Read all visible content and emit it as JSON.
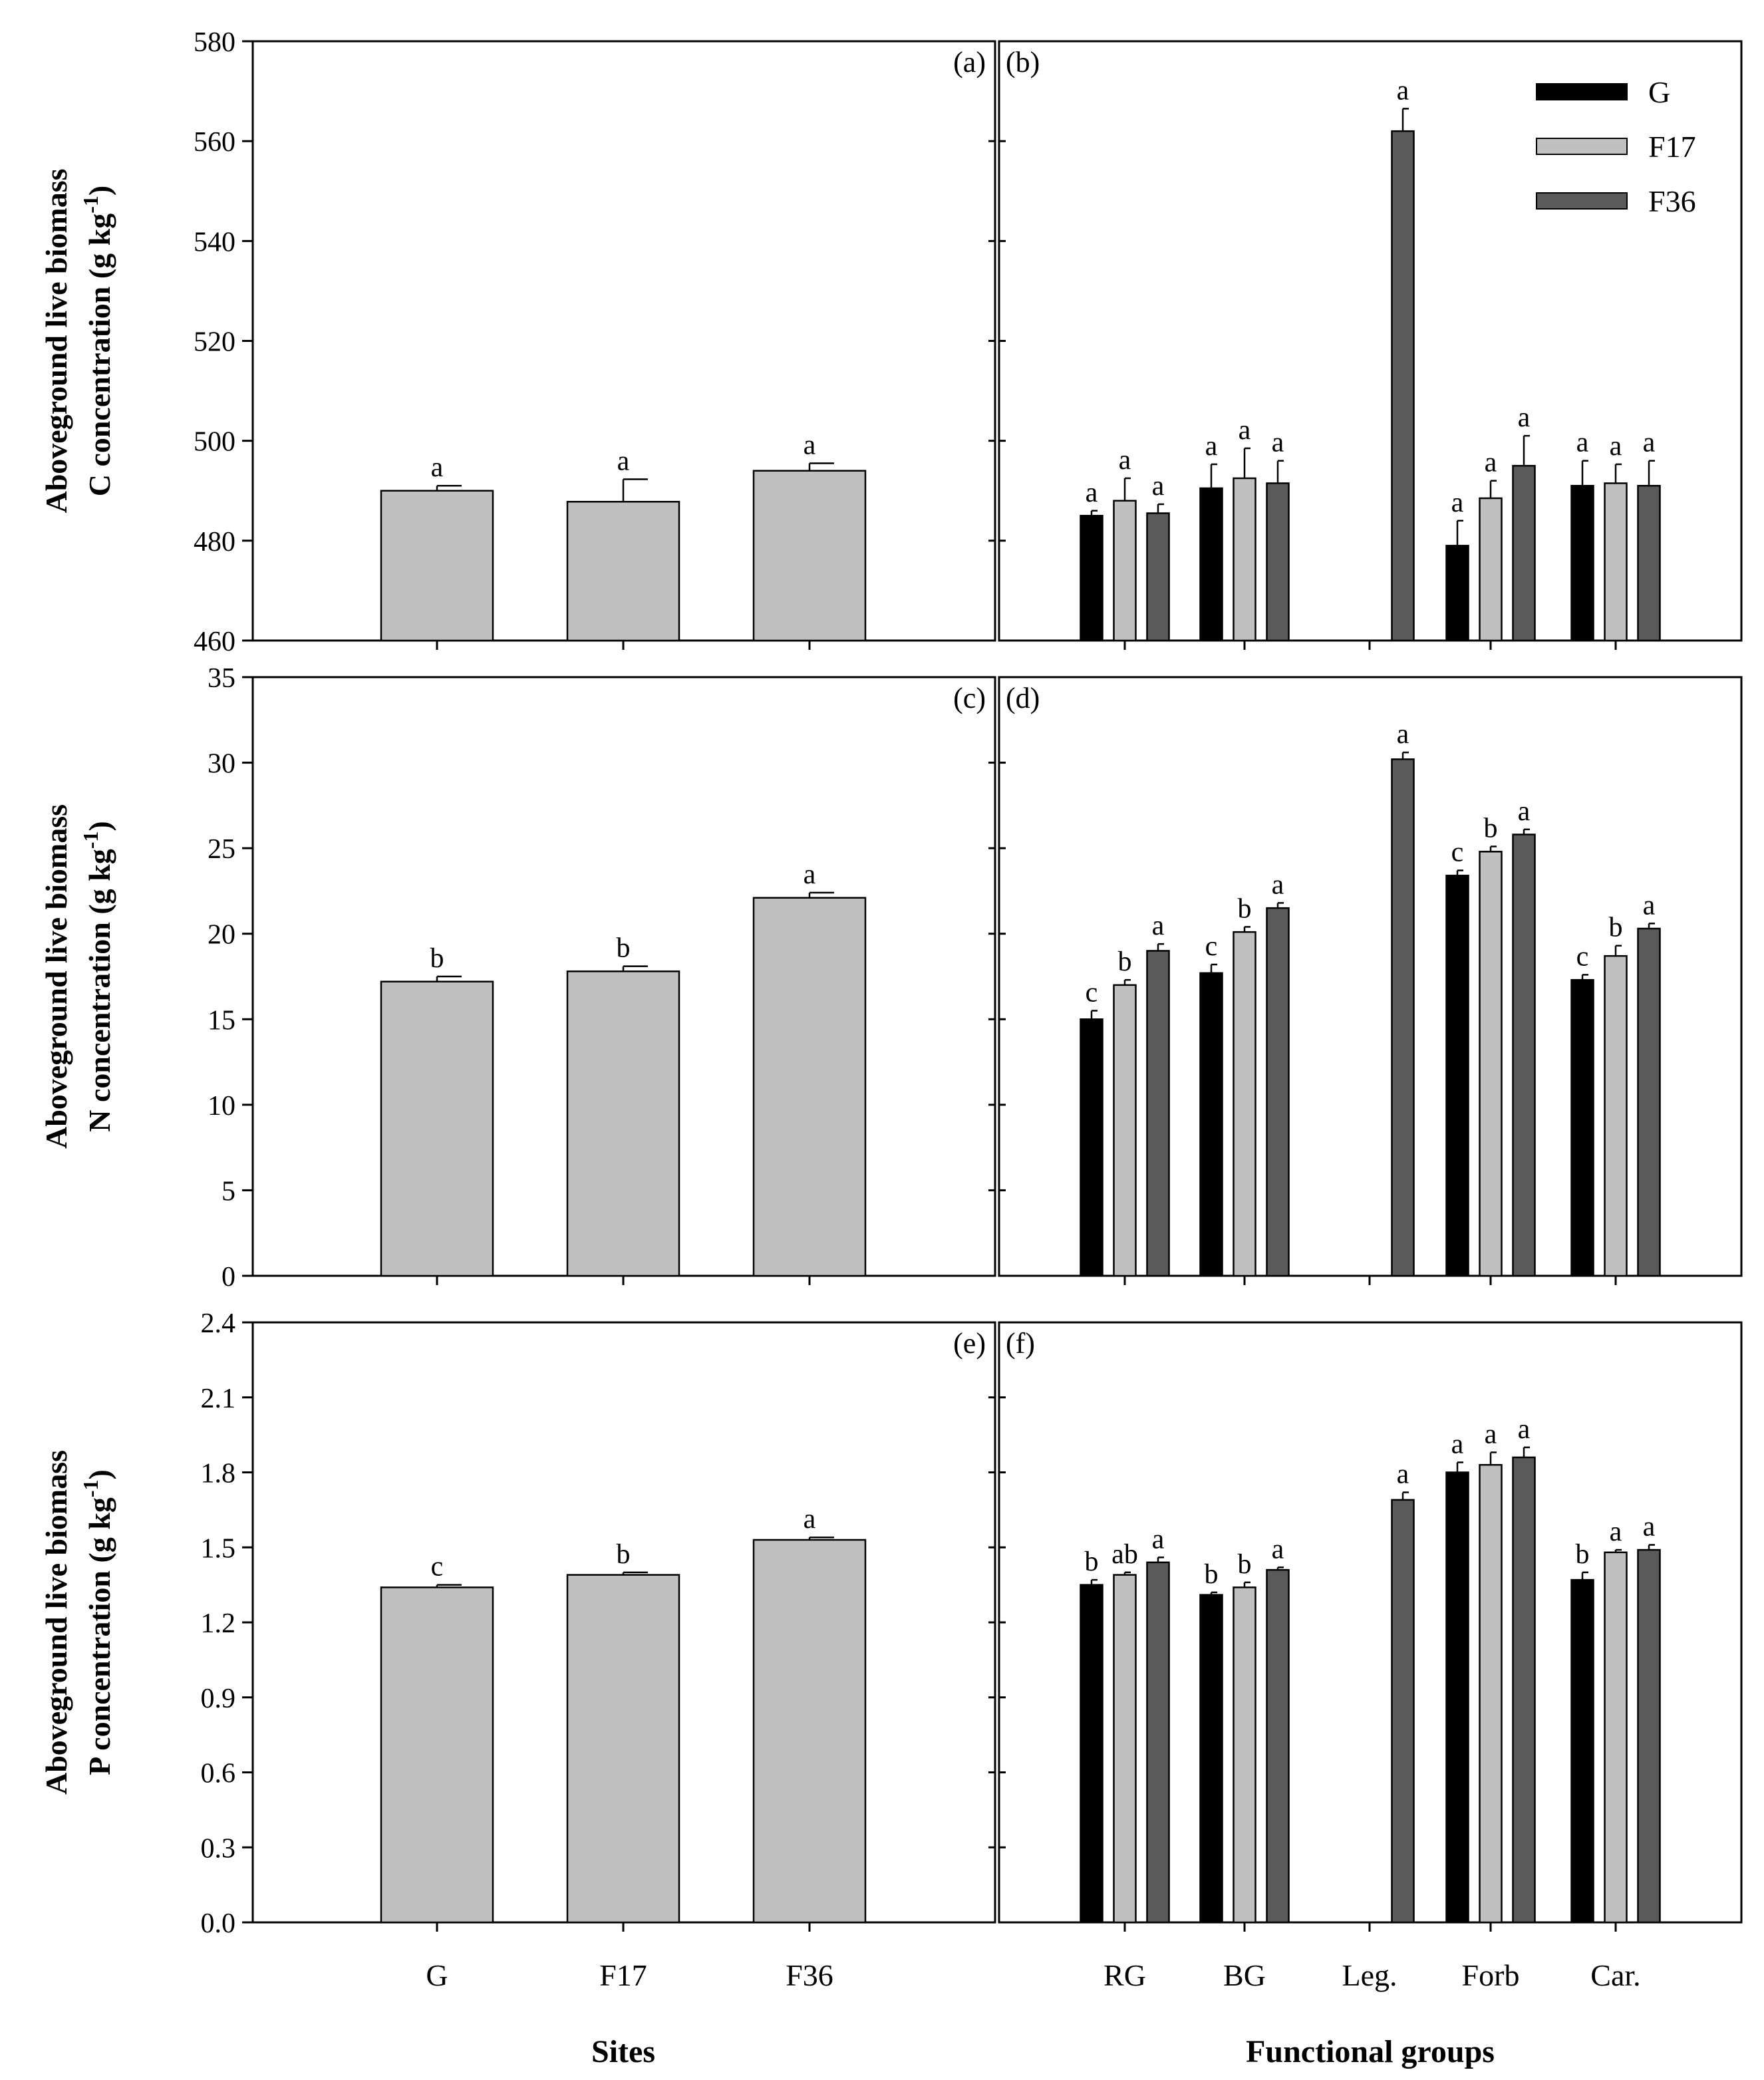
{
  "chart_data": {
    "type": "bar",
    "series_colors": {
      "G": "#000000",
      "F17": "#c0c0c0",
      "F36": "#5a5a5a"
    },
    "site_bar_color": "#c0c0c0",
    "legend": {
      "entries": [
        "G",
        "F17",
        "F36"
      ],
      "position": "top-right"
    },
    "xlabel_left": "Sites",
    "xlabel_right": "Functional groups",
    "site_categories": [
      "G",
      "F17",
      "F36"
    ],
    "group_categories": [
      "RG",
      "BG",
      "Leg.",
      "Forb",
      "Car."
    ],
    "rows": [
      {
        "ylabel_line1": "Aboveground live biomass",
        "ylabel_line2": "C concentration (g kg",
        "ylabel_sup": "-1",
        "ylabel_close": ")",
        "ylim": [
          460,
          580
        ],
        "yticks": [
          "460",
          "480",
          "500",
          "520",
          "540",
          "560",
          "580"
        ],
        "left": {
          "tag": "(a)",
          "bars": [
            {
              "category": "G",
              "value": 490.0,
              "error": 1.0,
              "sig": "a"
            },
            {
              "category": "F17",
              "value": 487.8,
              "error": 4.5,
              "sig": "a"
            },
            {
              "category": "F36",
              "value": 494.0,
              "error": 1.5,
              "sig": "a"
            }
          ]
        },
        "right": {
          "tag": "(b)",
          "groups": [
            {
              "category": "RG",
              "bars": [
                {
                  "series": "G",
                  "value": 485.0,
                  "error": 1.0,
                  "sig": "a"
                },
                {
                  "series": "F17",
                  "value": 488.0,
                  "error": 4.5,
                  "sig": "a"
                },
                {
                  "series": "F36",
                  "value": 485.5,
                  "error": 1.8,
                  "sig": "a"
                }
              ]
            },
            {
              "category": "BG",
              "bars": [
                {
                  "series": "G",
                  "value": 490.5,
                  "error": 4.8,
                  "sig": "a"
                },
                {
                  "series": "F17",
                  "value": 492.5,
                  "error": 6.0,
                  "sig": "a"
                },
                {
                  "series": "F36",
                  "value": 491.5,
                  "error": 4.5,
                  "sig": "a"
                }
              ]
            },
            {
              "category": "Leg.",
              "bars": [
                {
                  "series": "F36",
                  "value": 562.0,
                  "error": 4.5,
                  "sig": "a"
                }
              ]
            },
            {
              "category": "Forb",
              "bars": [
                {
                  "series": "G",
                  "value": 479.0,
                  "error": 5.0,
                  "sig": "a"
                },
                {
                  "series": "F17",
                  "value": 488.5,
                  "error": 3.5,
                  "sig": "a"
                },
                {
                  "series": "F36",
                  "value": 495.0,
                  "error": 6.0,
                  "sig": "a"
                }
              ]
            },
            {
              "category": "Car.",
              "bars": [
                {
                  "series": "G",
                  "value": 491.0,
                  "error": 5.0,
                  "sig": "a"
                },
                {
                  "series": "F17",
                  "value": 491.5,
                  "error": 3.8,
                  "sig": "a"
                },
                {
                  "series": "F36",
                  "value": 491.0,
                  "error": 5.0,
                  "sig": "a"
                }
              ]
            }
          ]
        }
      },
      {
        "ylabel_line1": "Aboveground live biomass",
        "ylabel_line2": "N concentration (g kg",
        "ylabel_sup": "-1",
        "ylabel_close": ")",
        "ylim": [
          0,
          35
        ],
        "yticks": [
          "0",
          "5",
          "10",
          "15",
          "20",
          "25",
          "30",
          "35"
        ],
        "left": {
          "tag": "(c)",
          "bars": [
            {
              "category": "G",
              "value": 17.2,
              "error": 0.3,
              "sig": "b"
            },
            {
              "category": "F17",
              "value": 17.8,
              "error": 0.3,
              "sig": "b"
            },
            {
              "category": "F36",
              "value": 22.1,
              "error": 0.3,
              "sig": "a"
            }
          ]
        },
        "right": {
          "tag": "(d)",
          "groups": [
            {
              "category": "RG",
              "bars": [
                {
                  "series": "G",
                  "value": 15.0,
                  "error": 0.5,
                  "sig": "c"
                },
                {
                  "series": "F17",
                  "value": 17.0,
                  "error": 0.3,
                  "sig": "b"
                },
                {
                  "series": "F36",
                  "value": 19.0,
                  "error": 0.4,
                  "sig": "a"
                }
              ]
            },
            {
              "category": "BG",
              "bars": [
                {
                  "series": "G",
                  "value": 17.7,
                  "error": 0.5,
                  "sig": "c"
                },
                {
                  "series": "F17",
                  "value": 20.1,
                  "error": 0.3,
                  "sig": "b"
                },
                {
                  "series": "F36",
                  "value": 21.5,
                  "error": 0.3,
                  "sig": "a"
                }
              ]
            },
            {
              "category": "Leg.",
              "bars": [
                {
                  "series": "F36",
                  "value": 30.2,
                  "error": 0.4,
                  "sig": "a"
                }
              ]
            },
            {
              "category": "Forb",
              "bars": [
                {
                  "series": "G",
                  "value": 23.4,
                  "error": 0.3,
                  "sig": "c"
                },
                {
                  "series": "F17",
                  "value": 24.8,
                  "error": 0.3,
                  "sig": "b"
                },
                {
                  "series": "F36",
                  "value": 25.8,
                  "error": 0.3,
                  "sig": "a"
                }
              ]
            },
            {
              "category": "Car.",
              "bars": [
                {
                  "series": "G",
                  "value": 17.3,
                  "error": 0.3,
                  "sig": "c"
                },
                {
                  "series": "F17",
                  "value": 18.7,
                  "error": 0.6,
                  "sig": "b"
                },
                {
                  "series": "F36",
                  "value": 20.3,
                  "error": 0.3,
                  "sig": "a"
                }
              ]
            }
          ]
        }
      },
      {
        "ylabel_line1": "Aboveground live biomass",
        "ylabel_line2": "P concentration (g kg",
        "ylabel_sup": "-1",
        "ylabel_close": ")",
        "ylim": [
          0,
          2.4
        ],
        "yticks": [
          "0.0",
          "0.3",
          "0.6",
          "0.9",
          "1.2",
          "1.5",
          "1.8",
          "2.1",
          "2.4"
        ],
        "left": {
          "tag": "(e)",
          "bars": [
            {
              "category": "G",
              "value": 1.34,
              "error": 0.01,
              "sig": "c"
            },
            {
              "category": "F17",
              "value": 1.39,
              "error": 0.01,
              "sig": "b"
            },
            {
              "category": "F36",
              "value": 1.53,
              "error": 0.01,
              "sig": "a"
            }
          ]
        },
        "right": {
          "tag": "(f)",
          "groups": [
            {
              "category": "RG",
              "bars": [
                {
                  "series": "G",
                  "value": 1.35,
                  "error": 0.02,
                  "sig": "b"
                },
                {
                  "series": "F17",
                  "value": 1.39,
                  "error": 0.01,
                  "sig": "ab"
                },
                {
                  "series": "F36",
                  "value": 1.44,
                  "error": 0.02,
                  "sig": "a"
                }
              ]
            },
            {
              "category": "BG",
              "bars": [
                {
                  "series": "G",
                  "value": 1.31,
                  "error": 0.01,
                  "sig": "b"
                },
                {
                  "series": "F17",
                  "value": 1.34,
                  "error": 0.02,
                  "sig": "b"
                },
                {
                  "series": "F36",
                  "value": 1.41,
                  "error": 0.01,
                  "sig": "a"
                }
              ]
            },
            {
              "category": "Leg.",
              "bars": [
                {
                  "series": "F36",
                  "value": 1.69,
                  "error": 0.03,
                  "sig": "a"
                }
              ]
            },
            {
              "category": "Forb",
              "bars": [
                {
                  "series": "G",
                  "value": 1.8,
                  "error": 0.04,
                  "sig": "a"
                },
                {
                  "series": "F17",
                  "value": 1.83,
                  "error": 0.05,
                  "sig": "a"
                },
                {
                  "series": "F36",
                  "value": 1.86,
                  "error": 0.04,
                  "sig": "a"
                }
              ]
            },
            {
              "category": "Car.",
              "bars": [
                {
                  "series": "G",
                  "value": 1.37,
                  "error": 0.03,
                  "sig": "b"
                },
                {
                  "series": "F17",
                  "value": 1.48,
                  "error": 0.01,
                  "sig": "a"
                },
                {
                  "series": "F36",
                  "value": 1.49,
                  "error": 0.02,
                  "sig": "a"
                }
              ]
            }
          ]
        }
      }
    ]
  }
}
